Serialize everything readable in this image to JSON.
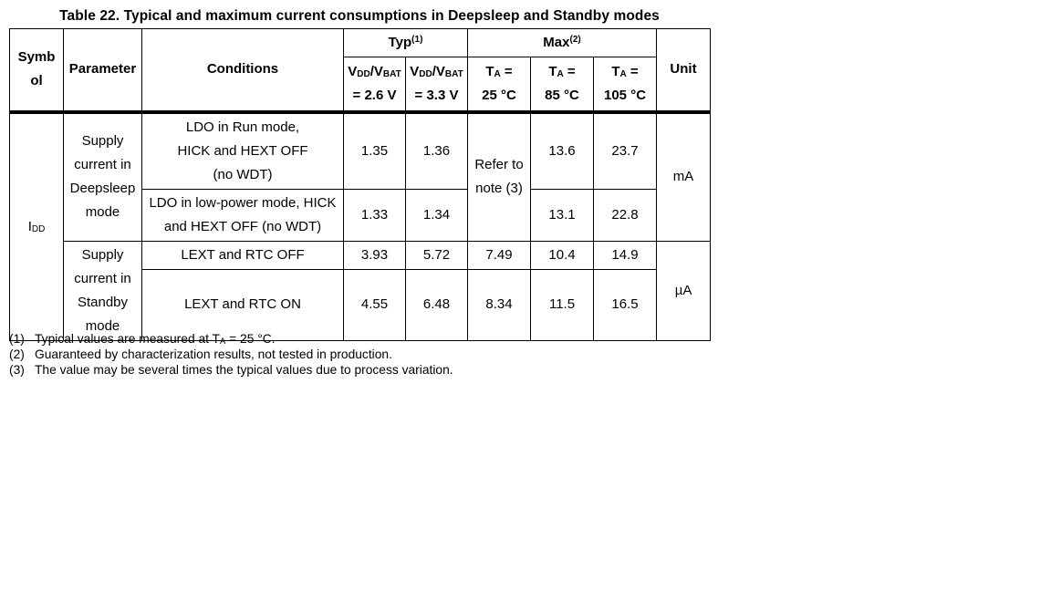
{
  "title": "Table 22. Typical and maximum current consumptions in Deepsleep and Standby modes",
  "table": {
    "header": {
      "symbol": "Symbol",
      "parameter": "Parameter",
      "conditions": "Conditions",
      "typ": "Typ^{(1)}",
      "max": "Max^{(2)}",
      "unit": "Unit",
      "typ_cols": [
        "V_{DD}/V_{BAT}\n= 2.6 V",
        "V_{DD}/V_{BAT}\n= 3.3 V"
      ],
      "max_cols": [
        "T_{A} =\n25 °C",
        "T_{A} =\n85 °C",
        "T_{A} =\n105 °C"
      ]
    },
    "symbol": "I_{DD}",
    "groups": [
      {
        "parameter": "Supply\ncurrent in\nDeepsleep\nmode",
        "unit": "mA",
        "rows": [
          {
            "conditions": "LDO in Run mode,\nHICK and HEXT OFF\n(no WDT)",
            "typ26": "1.35",
            "typ33": "1.36",
            "max25": "Refer to\nnote (3)",
            "max85": "13.6",
            "max105": "23.7"
          },
          {
            "conditions": "LDO in low-power mode, HICK\nand HEXT OFF (no WDT)",
            "typ26": "1.33",
            "typ33": "1.34",
            "max85": "13.1",
            "max105": "22.8"
          }
        ]
      },
      {
        "parameter": "Supply\ncurrent in\nStandby\nmode",
        "unit": "µA",
        "rows": [
          {
            "conditions": "LEXT and RTC OFF",
            "typ26": "3.93",
            "typ33": "5.72",
            "max25": "7.49",
            "max85": "10.4",
            "max105": "14.9"
          },
          {
            "conditions": "LEXT and RTC ON",
            "typ26": "4.55",
            "typ33": "6.48",
            "max25": "8.34",
            "max85": "11.5",
            "max105": "16.5"
          }
        ]
      }
    ]
  },
  "footnotes": [
    {
      "num": "(1)",
      "text": "Typical values are measured at T_{A} = 25 °C."
    },
    {
      "num": "(2)",
      "text": "Guaranteed by characterization results, not tested in production."
    },
    {
      "num": "(3)",
      "text": "The value may be several times the typical values due to process variation."
    }
  ]
}
